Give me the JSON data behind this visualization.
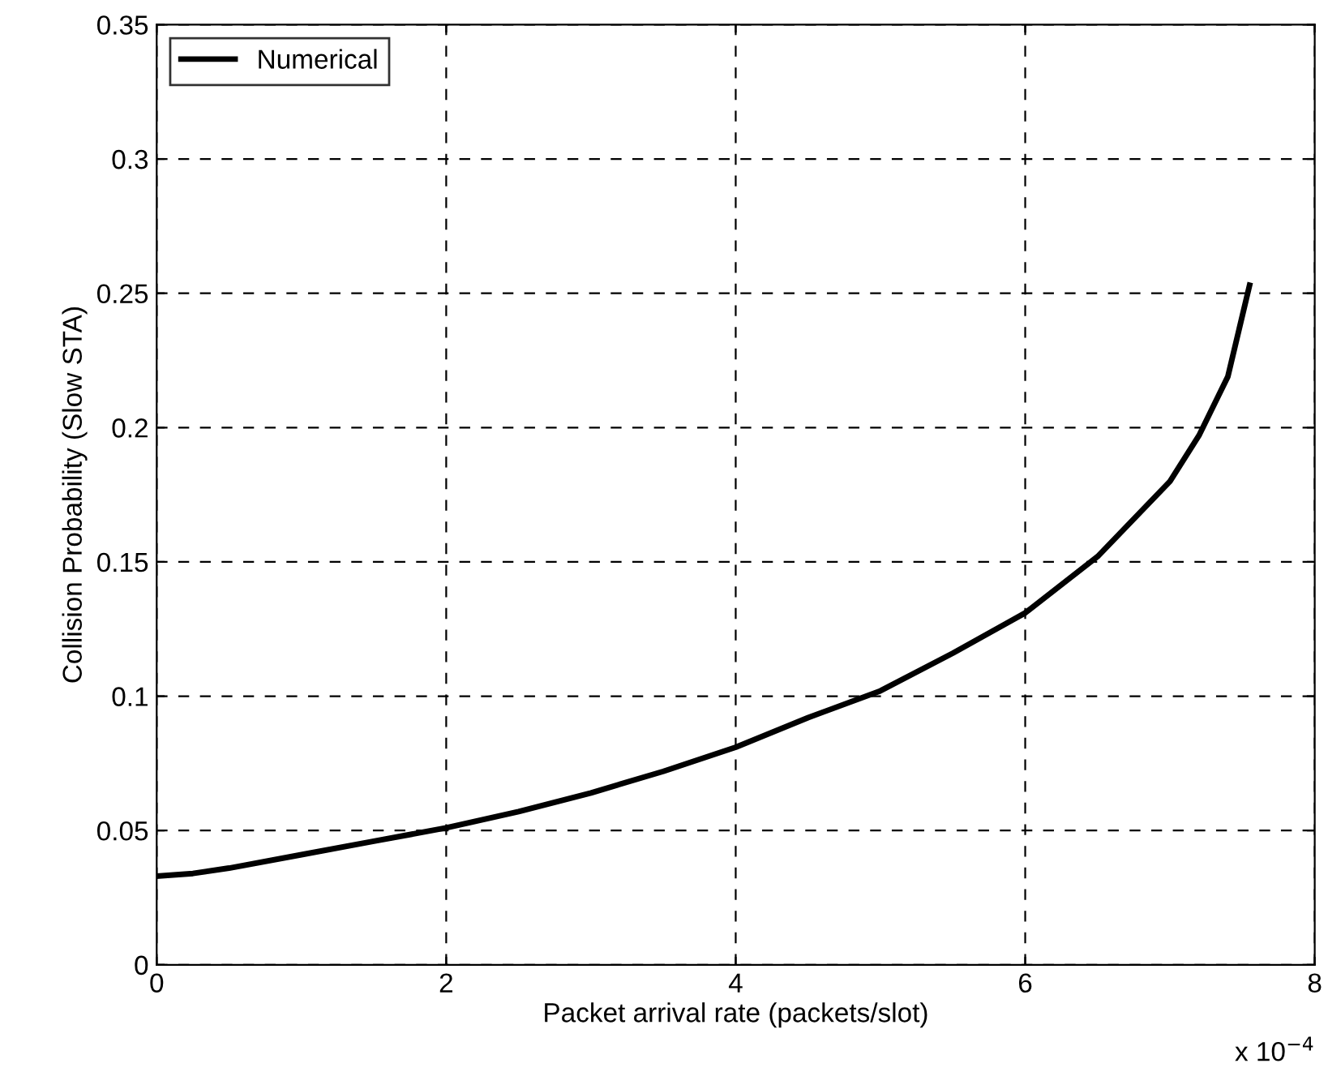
{
  "chart_data": {
    "type": "line",
    "xlabel": "Packet arrival rate (packets/slot)",
    "ylabel": "Collision Probability (Slow STA)",
    "annotations": [
      "x 10$^{−4}$"
    ],
    "x": [
      0,
      0.25,
      0.5,
      1,
      1.5,
      2,
      2.5,
      3,
      3.5,
      4,
      4.5,
      5,
      5.5,
      6,
      6.5,
      7,
      7.2,
      7.4,
      7.55
    ],
    "series": [
      {
        "name": "Numerical",
        "color": "#000000",
        "values": [
          0.033,
          0.034,
          0.036,
          0.041,
          0.046,
          0.051,
          0.057,
          0.064,
          0.072,
          0.081,
          0.092,
          0.102,
          0.116,
          0.131,
          0.152,
          0.18,
          0.197,
          0.219,
          0.253
        ]
      }
    ],
    "xlim": [
      0,
      8
    ],
    "xticks": [
      0,
      2,
      4,
      6,
      8
    ],
    "ylim": [
      0,
      0.35
    ],
    "yticks": [
      0,
      0.05,
      0.1,
      0.15,
      0.2,
      0.25,
      0.3,
      0.35
    ],
    "grid": true,
    "legend": "top left",
    "line_style": "solid",
    "marker": "none"
  }
}
